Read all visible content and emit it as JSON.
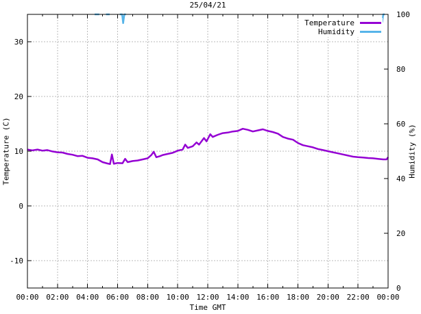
{
  "window": {
    "title": "25/04/21"
  },
  "colors": {
    "background": "#ffffff",
    "border": "#000000",
    "grid": "#b9b9b9",
    "temperature": "#9400d3",
    "humidity": "#56b4e9"
  },
  "chart_data": {
    "type": "line",
    "title": "25/04/21",
    "xlabel": "Time GMT",
    "ylabel_left": "Temperature (C)",
    "ylabel_right": "Humidity (%)",
    "x_range_hours": [
      0,
      24
    ],
    "x_major_tick_hours": 2,
    "x_minor_tick_hours": 1,
    "x_tick_labels": [
      "00:00",
      "02:00",
      "04:00",
      "06:00",
      "08:00",
      "10:00",
      "12:00",
      "14:00",
      "16:00",
      "18:00",
      "20:00",
      "22:00",
      "00:00"
    ],
    "y_left_range": [
      -15,
      35
    ],
    "y_left_ticks": [
      -10,
      0,
      10,
      20,
      30
    ],
    "y_right_range": [
      0,
      100
    ],
    "y_right_ticks": [
      0,
      20,
      40,
      60,
      80,
      100
    ],
    "grid": {
      "show": true,
      "color": "#b9b9b9",
      "style": "dashed"
    },
    "legend": {
      "position": "top-right",
      "entries": [
        {
          "label": "Temperature",
          "color": "#9400d3"
        },
        {
          "label": "Humidity",
          "color": "#56b4e9"
        }
      ]
    },
    "series": [
      {
        "name": "Temperature",
        "axis": "left",
        "color": "#9400d3",
        "points": [
          [
            0,
            10.3
          ],
          [
            0.33,
            10.15
          ],
          [
            0.67,
            10.3
          ],
          [
            1,
            10.1
          ],
          [
            1.33,
            10.2
          ],
          [
            1.67,
            9.95
          ],
          [
            2,
            9.8
          ],
          [
            2.33,
            9.75
          ],
          [
            2.67,
            9.5
          ],
          [
            3,
            9.35
          ],
          [
            3.33,
            9.1
          ],
          [
            3.67,
            9.15
          ],
          [
            4,
            8.8
          ],
          [
            4.33,
            8.7
          ],
          [
            4.67,
            8.5
          ],
          [
            5,
            8.0
          ],
          [
            5.33,
            7.75
          ],
          [
            5.5,
            7.65
          ],
          [
            5.62,
            9.4
          ],
          [
            5.75,
            7.7
          ],
          [
            6,
            7.85
          ],
          [
            6.33,
            7.8
          ],
          [
            6.5,
            8.6
          ],
          [
            6.67,
            8.0
          ],
          [
            7,
            8.2
          ],
          [
            7.33,
            8.3
          ],
          [
            7.67,
            8.5
          ],
          [
            8,
            8.7
          ],
          [
            8.25,
            9.3
          ],
          [
            8.4,
            9.9
          ],
          [
            8.58,
            8.9
          ],
          [
            8.83,
            9.1
          ],
          [
            9,
            9.3
          ],
          [
            9.33,
            9.5
          ],
          [
            9.67,
            9.7
          ],
          [
            10,
            10.1
          ],
          [
            10.33,
            10.3
          ],
          [
            10.5,
            11.2
          ],
          [
            10.67,
            10.6
          ],
          [
            11,
            10.9
          ],
          [
            11.25,
            11.6
          ],
          [
            11.42,
            11.2
          ],
          [
            11.75,
            12.4
          ],
          [
            11.92,
            11.8
          ],
          [
            12.17,
            13.1
          ],
          [
            12.33,
            12.6
          ],
          [
            12.67,
            13.0
          ],
          [
            13,
            13.3
          ],
          [
            13.33,
            13.4
          ],
          [
            13.67,
            13.6
          ],
          [
            14,
            13.7
          ],
          [
            14.33,
            14.1
          ],
          [
            14.67,
            13.9
          ],
          [
            15,
            13.6
          ],
          [
            15.33,
            13.8
          ],
          [
            15.67,
            14.0
          ],
          [
            16,
            13.7
          ],
          [
            16.33,
            13.5
          ],
          [
            16.67,
            13.2
          ],
          [
            17,
            12.6
          ],
          [
            17.33,
            12.3
          ],
          [
            17.67,
            12.1
          ],
          [
            18,
            11.5
          ],
          [
            18.33,
            11.1
          ],
          [
            18.67,
            10.9
          ],
          [
            19,
            10.7
          ],
          [
            19.33,
            10.4
          ],
          [
            19.67,
            10.2
          ],
          [
            20,
            10.0
          ],
          [
            20.33,
            9.8
          ],
          [
            20.67,
            9.6
          ],
          [
            21,
            9.4
          ],
          [
            21.33,
            9.2
          ],
          [
            21.67,
            9.0
          ],
          [
            22,
            8.9
          ],
          [
            22.33,
            8.85
          ],
          [
            22.67,
            8.75
          ],
          [
            23,
            8.7
          ],
          [
            23.33,
            8.6
          ],
          [
            23.67,
            8.5
          ],
          [
            23.9,
            8.5
          ],
          [
            24,
            8.9
          ]
        ]
      },
      {
        "name": "Humidity",
        "axis": "right",
        "color": "#56b4e9",
        "segments": [
          [
            [
              4.47,
              100
            ],
            [
              4.78,
              100
            ]
          ],
          [
            [
              5.23,
              100
            ],
            [
              5.47,
              100
            ]
          ],
          [
            [
              6.15,
              100
            ],
            [
              6.3,
              100
            ],
            [
              6.37,
              96.8
            ],
            [
              6.45,
              100
            ],
            [
              6.55,
              100
            ]
          ],
          [
            [
              23.6,
              97
            ],
            [
              23.68,
              100
            ],
            [
              23.77,
              100
            ]
          ]
        ]
      }
    ]
  }
}
